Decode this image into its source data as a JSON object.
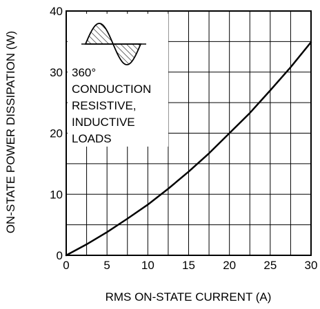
{
  "chart_data": {
    "type": "line",
    "title": "",
    "xlabel": "RMS ON-STATE CURRENT  (A)",
    "ylabel": "ON-STATE POWER DISSIPATION  (W)",
    "xlim": [
      0,
      30
    ],
    "ylim": [
      0,
      40
    ],
    "x_ticks": [
      "0",
      "5",
      "10",
      "15",
      "20",
      "25",
      "30"
    ],
    "y_ticks": [
      "0",
      "10",
      "20",
      "30",
      "40"
    ],
    "grid": true,
    "grid_minor_x_step": 2.5,
    "grid_minor_y_step": 5,
    "series": [
      {
        "x": [
          0,
          2.5,
          5,
          7.5,
          10,
          12.5,
          15,
          17.5,
          20,
          22.5,
          25,
          27.5,
          30
        ],
        "y": [
          0,
          1.8,
          3.8,
          6.0,
          8.3,
          10.9,
          13.7,
          16.7,
          20.0,
          23.3,
          27.0,
          30.8,
          34.9
        ]
      }
    ],
    "annotation_lines": [
      "360°",
      "CONDUCTION",
      "RESISTIVE,",
      "INDUCTIVE",
      "LOADS"
    ],
    "inset_icon": "sine-wave-conduction-icon",
    "colors": {
      "line": "#000000",
      "grid": "#000000",
      "background": "#ffffff"
    }
  }
}
